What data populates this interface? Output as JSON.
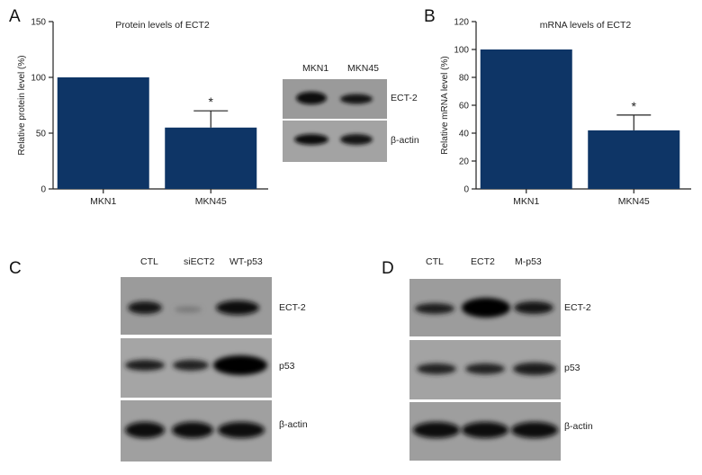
{
  "panels": {
    "A": "A",
    "B": "B",
    "C": "C",
    "D": "D"
  },
  "chart_data": [
    {
      "type": "bar",
      "title": "Protein levels of ECT2",
      "ylabel": "Relative protein level (%)",
      "xlabel": "",
      "categories": [
        "MKN1",
        "MKN45"
      ],
      "values": [
        100,
        55
      ],
      "errors": [
        0,
        15
      ],
      "ylim": [
        0,
        150
      ],
      "yticks": [
        0,
        50,
        100,
        150
      ],
      "annotations": [
        "",
        "*"
      ],
      "bar_color": "#0e3566"
    },
    {
      "type": "bar",
      "title": "mRNA levels of ECT2",
      "ylabel": "Relative mRNA level (%)",
      "xlabel": "",
      "categories": [
        "MKN1",
        "MKN45"
      ],
      "values": [
        100,
        42
      ],
      "errors": [
        0,
        11
      ],
      "ylim": [
        0,
        120
      ],
      "yticks": [
        0,
        20,
        40,
        60,
        80,
        100,
        120
      ],
      "annotations": [
        "",
        "*"
      ],
      "bar_color": "#0e3566"
    }
  ],
  "blots": {
    "A": {
      "lanes": [
        "MKN1",
        "MKN45"
      ],
      "rows": [
        "ECT-2",
        "β-actin"
      ]
    },
    "C": {
      "lanes": [
        "CTL",
        "siECT2",
        "WT-p53"
      ],
      "rows": [
        "ECT-2",
        "p53",
        "β-actin"
      ]
    },
    "D": {
      "lanes": [
        "CTL",
        "ECT2",
        "M-p53"
      ],
      "rows": [
        "ECT-2",
        "p53",
        "β-actin"
      ]
    }
  }
}
